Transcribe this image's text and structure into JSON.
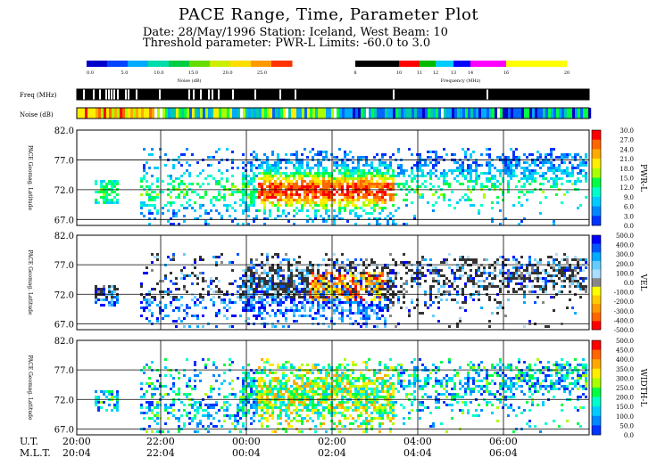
{
  "header": {
    "title": "PACE Range, Time, Parameter Plot",
    "line1": "Date: 28/May/1996  Station: Iceland, West  Beam: 10",
    "line2": "Threshold parameter: PWR-L        Limits: -60.0 to   3.0"
  },
  "noise_scale": {
    "label": "Noise (dB)",
    "ticks": [
      "0.0",
      "5.0",
      "10.0",
      "15.0",
      "20.0",
      "25.0"
    ],
    "colors": [
      "#0000cc",
      "#0044ff",
      "#00aaff",
      "#00ddaa",
      "#00cc44",
      "#66dd00",
      "#ccee00",
      "#ffdd00",
      "#ff9900",
      "#ff3300"
    ]
  },
  "freq_scale": {
    "label": "Frequency (MHz)",
    "ticks": [
      "8",
      "10",
      "11",
      "12",
      "13",
      "14",
      "16",
      "20"
    ],
    "colors": [
      "#000000",
      "#ff0000",
      "#00bb00",
      "#00ccff",
      "#0000ff",
      "#ff00ff",
      "#ffff00"
    ]
  },
  "strips": {
    "freq_label": "Freq (MHz)",
    "noise_label": "Noise (dB)"
  },
  "time_axis": {
    "ut_label": "U.T.",
    "mlt_label": "M.L.T.",
    "ut_ticks": [
      "20:00",
      "22:00",
      "00:00",
      "02:00",
      "04:00",
      "06:00"
    ],
    "mlt_ticks": [
      "20:04",
      "22:04",
      "00:04",
      "02:04",
      "04:04",
      "06:04"
    ]
  },
  "chart_data": [
    {
      "type": "heatmap",
      "parameter": "PWR-L",
      "ylabel": "PACE Geomag. Latitude",
      "ylim": [
        66,
        82
      ],
      "yticks": [
        "82.0",
        "77.0",
        "72.0",
        "67.0"
      ],
      "colorbar_label": "PWR-L",
      "colorbar_ticks": [
        "30.0",
        "27.0",
        "24.0",
        "21.0",
        "18.0",
        "15.0",
        "12.0",
        "9.0",
        "6.0",
        "3.0",
        "0.0"
      ],
      "colorbar_colors": [
        "#ff0000",
        "#ff6600",
        "#ffaa00",
        "#ffee00",
        "#aaff00",
        "#00ff44",
        "#00ffcc",
        "#00ccff",
        "#0088ff",
        "#0033ff"
      ]
    },
    {
      "type": "heatmap",
      "parameter": "VEL",
      "ylabel": "PACE Geomag. Latitude",
      "ylim": [
        66,
        82
      ],
      "yticks": [
        "82.0",
        "77.0",
        "72.0",
        "67.0"
      ],
      "colorbar_label": "VEL",
      "colorbar_ticks": [
        "500.0",
        "400.0",
        "300.0",
        "200.0",
        "100.0",
        "0.0",
        "-100.0",
        "-200.0",
        "-300.0",
        "-400.0",
        "-500.0"
      ],
      "colorbar_colors": [
        "#0000ff",
        "#0055ff",
        "#00aaff",
        "#66ccff",
        "#aaddff",
        "#888888",
        "#ffff00",
        "#ffcc00",
        "#ff9900",
        "#ff6600",
        "#ff0000"
      ]
    },
    {
      "type": "heatmap",
      "parameter": "WIDTH-L",
      "ylabel": "PACE Geomag. Latitude",
      "ylim": [
        66,
        82
      ],
      "yticks": [
        "82.0",
        "77.0",
        "72.0",
        "67.0"
      ],
      "colorbar_label": "WIDTH-L",
      "colorbar_ticks": [
        "500.0",
        "450.0",
        "400.0",
        "350.0",
        "300.0",
        "250.0",
        "200.0",
        "150.0",
        "100.0",
        "50.0",
        "0.0"
      ],
      "colorbar_colors": [
        "#ff0000",
        "#ff6600",
        "#ffaa00",
        "#ffee00",
        "#aaff00",
        "#00ff44",
        "#00ffcc",
        "#00ccff",
        "#0088ff",
        "#0033ff"
      ]
    }
  ]
}
